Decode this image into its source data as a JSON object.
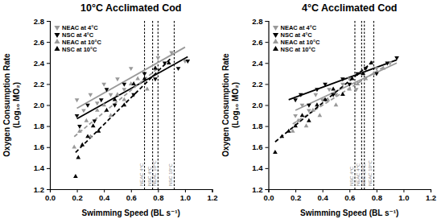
{
  "chart_data": [
    {
      "type": "scatter",
      "title": "10°C Acclimated Cod",
      "xlabel": "Swimming Speed (BL s⁻¹)",
      "ylabel": [
        "Oxygen Consumption Rate",
        "(Log₁₀ MO₂)"
      ],
      "xlim": [
        0,
        1.2
      ],
      "xticks": [
        {
          "value": 0,
          "label": "0.0"
        },
        {
          "value": 0.2,
          "label": "0.2"
        },
        {
          "value": 0.4,
          "label": "0.4"
        },
        {
          "value": 0.6,
          "label": "0.6"
        },
        {
          "value": 0.8,
          "label": "0.8"
        },
        {
          "value": 1,
          "label": "1.0"
        },
        {
          "value": 1.2,
          "label": "1.2"
        }
      ],
      "ylim": [
        1.2,
        2.8
      ],
      "yticks": [
        {
          "value": 1.2,
          "label": "1.2"
        },
        {
          "value": 1.4,
          "label": "1.4"
        },
        {
          "value": 1.6,
          "label": "1.6"
        },
        {
          "value": 1.8,
          "label": "1.8"
        },
        {
          "value": 2,
          "label": "2.0"
        },
        {
          "value": 2.2,
          "label": "2.2"
        },
        {
          "value": 2.4,
          "label": "2.4"
        },
        {
          "value": 2.6,
          "label": "2.6"
        },
        {
          "value": 2.8,
          "label": "2.8"
        }
      ],
      "legend": "upper left",
      "series": [
        {
          "name": "NEAC at 4°C",
          "color": "#999999",
          "marker": "triangle-down",
          "line_style": "solid",
          "x": [
            0.2,
            0.25,
            0.3,
            0.35,
            0.4,
            0.45,
            0.5,
            0.55,
            0.6,
            0.7,
            0.8,
            0.9,
            1.0
          ],
          "values": [
            2.05,
            1.95,
            2.1,
            2.02,
            2.2,
            2.1,
            2.25,
            2.15,
            2.35,
            2.3,
            2.45,
            2.5,
            2.42
          ],
          "fit_x": [
            0.2,
            1.0
          ],
          "fit_values": [
            1.97,
            2.55
          ]
        },
        {
          "name": "NSC at 4°C",
          "color": "#000000",
          "marker": "triangle-down",
          "line_style": "solid",
          "x": [
            0.2,
            0.22,
            0.28,
            0.33,
            0.38,
            0.42,
            0.48,
            0.55,
            0.62,
            0.7,
            0.78,
            0.85,
            0.95,
            1.02
          ],
          "values": [
            1.9,
            1.8,
            2.0,
            1.85,
            2.05,
            2.15,
            2.0,
            2.2,
            2.1,
            2.3,
            2.25,
            2.4,
            2.35,
            2.42
          ],
          "fit_x": [
            0.2,
            1.02
          ],
          "fit_values": [
            1.87,
            2.46
          ]
        },
        {
          "name": "NEAC at 10°C",
          "color": "#999999",
          "marker": "triangle-up",
          "line_style": "dashed",
          "x": [
            0.18,
            0.22,
            0.27,
            0.3,
            0.35,
            0.4,
            0.45,
            0.5,
            0.55,
            0.6,
            0.65,
            0.72,
            0.78
          ],
          "values": [
            1.6,
            1.75,
            1.85,
            1.7,
            1.95,
            2.0,
            1.9,
            2.1,
            2.05,
            2.2,
            2.25,
            2.15,
            2.35
          ],
          "fit_x": [
            0.18,
            0.8
          ],
          "fit_values": [
            1.7,
            2.35
          ]
        },
        {
          "name": "NSC at 10°C",
          "color": "#000000",
          "marker": "triangle-up",
          "line_style": "dashed",
          "x": [
            0.19,
            0.21,
            0.24,
            0.28,
            0.32,
            0.36,
            0.42,
            0.48,
            0.55,
            0.62,
            0.7,
            0.78,
            0.88
          ],
          "values": [
            1.32,
            1.5,
            1.62,
            1.7,
            1.8,
            1.75,
            1.95,
            2.05,
            2.0,
            2.2,
            2.25,
            2.35,
            2.4
          ],
          "fit_x": [
            0.19,
            0.9
          ],
          "fit_values": [
            1.55,
            2.45
          ]
        }
      ],
      "annotations": [
        {
          "x": 0.7,
          "text": "NEAC 4°C"
        },
        {
          "x": 0.76,
          "text": "NSC 4°C"
        },
        {
          "x": 0.8,
          "text": "NEAC 10°C"
        },
        {
          "x": 0.92,
          "text": "NSC 10°C"
        }
      ]
    },
    {
      "type": "scatter",
      "title": "4°C Acclimated Cod",
      "xlabel": "Swimming Speed (BL s⁻¹)",
      "ylabel": [
        "Oxygen Consumption Rate",
        "(Log₁₀ MO₂)"
      ],
      "xlim": [
        0,
        1.2
      ],
      "xticks": [
        {
          "value": 0,
          "label": "0.0"
        },
        {
          "value": 0.2,
          "label": "0.2"
        },
        {
          "value": 0.4,
          "label": "0.4"
        },
        {
          "value": 0.6,
          "label": "0.6"
        },
        {
          "value": 0.8,
          "label": "0.8"
        },
        {
          "value": 1,
          "label": "1.0"
        },
        {
          "value": 1.2,
          "label": "1.2"
        }
      ],
      "ylim": [
        1.2,
        2.8
      ],
      "yticks": [
        {
          "value": 1.2,
          "label": "1.2"
        },
        {
          "value": 1.4,
          "label": "1.4"
        },
        {
          "value": 1.6,
          "label": "1.6"
        },
        {
          "value": 1.8,
          "label": "1.8"
        },
        {
          "value": 2,
          "label": "2.0"
        },
        {
          "value": 2.2,
          "label": "2.2"
        },
        {
          "value": 2.4,
          "label": "2.4"
        },
        {
          "value": 2.6,
          "label": "2.6"
        },
        {
          "value": 2.8,
          "label": "2.8"
        }
      ],
      "legend": "upper left",
      "series": [
        {
          "name": "NEAC at 4°C",
          "color": "#999999",
          "marker": "triangle-down",
          "line_style": "solid",
          "x": [
            0.2,
            0.25,
            0.3,
            0.35,
            0.4,
            0.45,
            0.5,
            0.55,
            0.6,
            0.65,
            0.7,
            0.8,
            0.9
          ],
          "values": [
            1.9,
            2.0,
            1.95,
            2.1,
            2.05,
            2.15,
            2.1,
            2.2,
            2.25,
            2.15,
            2.3,
            2.35,
            2.4
          ],
          "fit_x": [
            0.2,
            0.95
          ],
          "fit_values": [
            1.95,
            2.4
          ]
        },
        {
          "name": "NSC at 4°C",
          "color": "#000000",
          "marker": "triangle-down",
          "line_style": "solid",
          "x": [
            0.2,
            0.24,
            0.3,
            0.36,
            0.42,
            0.48,
            0.55,
            0.6,
            0.66,
            0.72,
            0.8,
            0.88,
            0.95
          ],
          "values": [
            2.05,
            2.1,
            2.0,
            2.15,
            2.2,
            2.1,
            2.25,
            2.2,
            2.3,
            2.35,
            2.3,
            2.4,
            2.45
          ],
          "fit_x": [
            0.15,
            0.95
          ],
          "fit_values": [
            2.05,
            2.43
          ]
        },
        {
          "name": "NEAC at 10°C",
          "color": "#999999",
          "marker": "triangle-up",
          "line_style": "dashed",
          "x": [
            0.18,
            0.22,
            0.28,
            0.33,
            0.38,
            0.44,
            0.5,
            0.55,
            0.6,
            0.66,
            0.72,
            0.78,
            0.85
          ],
          "values": [
            1.75,
            1.85,
            1.8,
            1.95,
            1.9,
            2.05,
            2.0,
            2.1,
            2.15,
            2.2,
            2.25,
            2.3,
            2.35
          ],
          "fit_x": [
            0.18,
            0.85
          ],
          "fit_values": [
            1.82,
            2.36
          ]
        },
        {
          "name": "NSC at 10°C",
          "color": "#000000",
          "marker": "triangle-up",
          "line_style": "dashed",
          "x": [
            0.05,
            0.1,
            0.15,
            0.2,
            0.25,
            0.3,
            0.36,
            0.42,
            0.48,
            0.55,
            0.62,
            0.7,
            0.76
          ],
          "values": [
            1.55,
            1.7,
            1.75,
            1.8,
            1.9,
            1.85,
            2.0,
            2.05,
            2.15,
            2.1,
            2.25,
            2.3,
            2.4
          ],
          "fit_x": [
            0.05,
            0.78
          ],
          "fit_values": [
            1.65,
            2.42
          ]
        }
      ],
      "annotations": [
        {
          "x": 0.64,
          "text": "NSC 4°C"
        },
        {
          "x": 0.69,
          "text": "NEAC 4°C"
        },
        {
          "x": 0.71,
          "text": "NSC 10°C"
        },
        {
          "x": 0.78,
          "text": "NEAC 10°C"
        }
      ]
    }
  ]
}
